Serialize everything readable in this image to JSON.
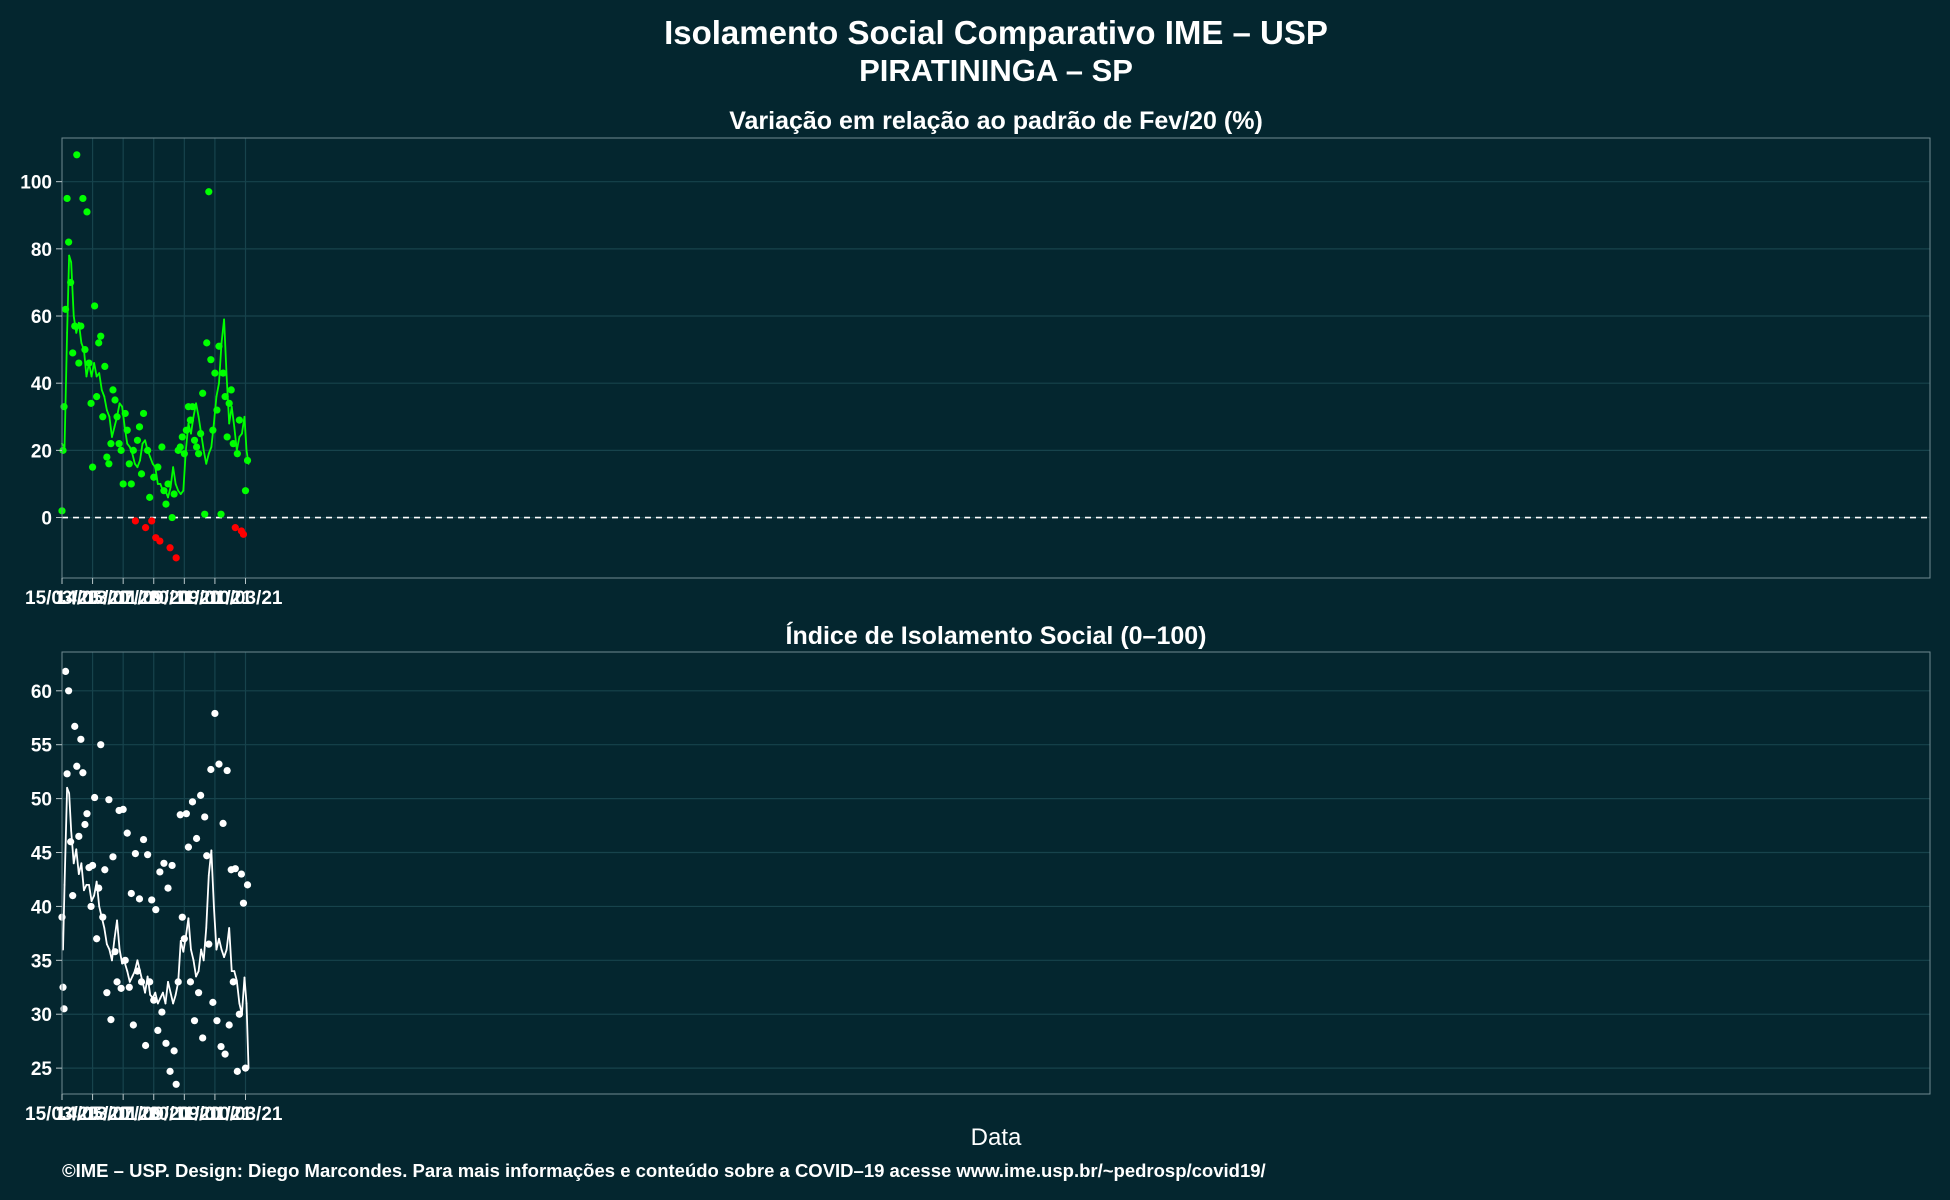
{
  "header": {
    "title_line1": "Isolamento Social Comparativo IME – USP",
    "title_line2": "PIRATININGA – SP"
  },
  "x_axis_label": "Data",
  "footer": "©IME – USP. Design: Diego Marcondes. Para mais informações e conteúdo sobre a COVID–19 acesse www.ime.usp.br/~pedrosp/covid19/",
  "colors": {
    "background": "#04262f",
    "positive": "#00ff00",
    "negative": "#ff0000",
    "index_points": "#ffffff"
  },
  "chart_data": [
    {
      "type": "scatter",
      "title": "Variação em relação ao padrão de Fev/20 (%)",
      "xlabel": "",
      "ylabel": "",
      "x_tick_labels": [
        "15/03/20",
        "14/05/20",
        "13/07/20",
        "11/09/20",
        "10/11/20",
        "09/01/21",
        "10/03/21"
      ],
      "y_tick_labels": [
        "0",
        "20",
        "40",
        "60",
        "80",
        "100"
      ],
      "ylim": [
        -18,
        113
      ],
      "reference_line_y": 0,
      "grid": true,
      "series": [
        {
          "kind": "points",
          "x": [
            "2020-03-15",
            "2020-03-17",
            "2020-03-19",
            "2020-03-22",
            "2020-03-25",
            "2020-03-28",
            "2020-04-01",
            "2020-04-05",
            "2020-04-09",
            "2020-04-13",
            "2020-04-17",
            "2020-04-21",
            "2020-04-25",
            "2020-04-29",
            "2020-05-03",
            "2020-05-07",
            "2020-05-11",
            "2020-05-14",
            "2020-05-18",
            "2020-05-22",
            "2020-05-26",
            "2020-05-30",
            "2020-06-03",
            "2020-06-07",
            "2020-06-11",
            "2020-06-15",
            "2020-06-19",
            "2020-06-23",
            "2020-06-27",
            "2020-07-01",
            "2020-07-05",
            "2020-07-09",
            "2020-07-13",
            "2020-07-17",
            "2020-07-21",
            "2020-07-25",
            "2020-07-29",
            "2020-08-02",
            "2020-08-06",
            "2020-08-10",
            "2020-08-14",
            "2020-08-18",
            "2020-08-22",
            "2020-08-26",
            "2020-08-30",
            "2020-09-03",
            "2020-09-07",
            "2020-09-11",
            "2020-09-15",
            "2020-09-19",
            "2020-09-23",
            "2020-09-27",
            "2020-10-01",
            "2020-10-05",
            "2020-10-09",
            "2020-10-13",
            "2020-10-17",
            "2020-10-21",
            "2020-10-25",
            "2020-10-29",
            "2020-11-02",
            "2020-11-06",
            "2020-11-10",
            "2020-11-14",
            "2020-11-18",
            "2020-11-22",
            "2020-11-26",
            "2020-11-30",
            "2020-12-04",
            "2020-12-08",
            "2020-12-12",
            "2020-12-16",
            "2020-12-20",
            "2020-12-24",
            "2020-12-28",
            "2021-01-01",
            "2021-01-05",
            "2021-01-09",
            "2021-01-13",
            "2021-01-17",
            "2021-01-21",
            "2021-01-25",
            "2021-01-29",
            "2021-02-02",
            "2021-02-06",
            "2021-02-10",
            "2021-02-14",
            "2021-02-18",
            "2021-02-22",
            "2021-02-26",
            "2021-03-02",
            "2021-03-06",
            "2021-03-10",
            "2021-03-14"
          ],
          "y": [
            2,
            20,
            33,
            62,
            95,
            82,
            70,
            49,
            57,
            108,
            46,
            57,
            95,
            50,
            91,
            46,
            34,
            15,
            63,
            36,
            52,
            54,
            30,
            45,
            18,
            16,
            22,
            38,
            35,
            30,
            22,
            20,
            10,
            31,
            26,
            16,
            10,
            20,
            -1,
            23,
            27,
            13,
            31,
            -3,
            20,
            6,
            -1,
            12,
            -6,
            15,
            -7,
            21,
            8,
            4,
            10,
            -9,
            0,
            7,
            -12,
            20,
            21,
            24,
            19,
            26,
            33,
            29,
            33,
            23,
            21,
            19,
            25,
            37,
            1,
            52,
            97,
            47,
            26,
            43,
            32,
            51,
            1,
            43,
            36,
            24,
            34,
            38,
            22,
            -3,
            19,
            29,
            -4,
            -5,
            8,
            17
          ],
          "color_rule": "green when value > 0, red when value < 0"
        },
        {
          "kind": "moving-average-line",
          "x": [
            "2020-03-15",
            "2020-03-20",
            "2020-03-25",
            "2020-03-29",
            "2020-04-02",
            "2020-04-07",
            "2020-04-12",
            "2020-04-17",
            "2020-04-22",
            "2020-04-27",
            "2020-05-02",
            "2020-05-07",
            "2020-05-12",
            "2020-05-17",
            "2020-05-22",
            "2020-05-27",
            "2020-06-01",
            "2020-06-06",
            "2020-06-11",
            "2020-06-16",
            "2020-06-21",
            "2020-06-26",
            "2020-07-01",
            "2020-07-06",
            "2020-07-11",
            "2020-07-16",
            "2020-07-21",
            "2020-07-26",
            "2020-07-31",
            "2020-08-05",
            "2020-08-10",
            "2020-08-15",
            "2020-08-20",
            "2020-08-25",
            "2020-08-30",
            "2020-09-04",
            "2020-09-09",
            "2020-09-14",
            "2020-09-19",
            "2020-09-24",
            "2020-09-29",
            "2020-10-04",
            "2020-10-09",
            "2020-10-14",
            "2020-10-19",
            "2020-10-24",
            "2020-10-29",
            "2020-11-03",
            "2020-11-08",
            "2020-11-13",
            "2020-11-18",
            "2020-11-23",
            "2020-11-28",
            "2020-12-03",
            "2020-12-08",
            "2020-12-13",
            "2020-12-18",
            "2020-12-23",
            "2020-12-28",
            "2021-01-02",
            "2021-01-07",
            "2021-01-12",
            "2021-01-17",
            "2021-01-22",
            "2021-01-27",
            "2021-02-01",
            "2021-02-06",
            "2021-02-11",
            "2021-02-16",
            "2021-02-21",
            "2021-02-26",
            "2021-03-03",
            "2021-03-08",
            "2021-03-12",
            "2021-03-16"
          ],
          "y": [
            22,
            21,
            55,
            78,
            76,
            60,
            55,
            58,
            52,
            50,
            42,
            46,
            42,
            46,
            42,
            43,
            38,
            36,
            32,
            30,
            24,
            27,
            30,
            34,
            33,
            27,
            22,
            21,
            19,
            16,
            15,
            17,
            22,
            23,
            20,
            18,
            16,
            15,
            10,
            10,
            8,
            8,
            6,
            9,
            15,
            10,
            8,
            7,
            8,
            20,
            28,
            25,
            30,
            34,
            30,
            25,
            20,
            16,
            19,
            21,
            28,
            36,
            40,
            52,
            59,
            42,
            28,
            33,
            27,
            20,
            24,
            25,
            30,
            20,
            16
          ]
        }
      ]
    },
    {
      "type": "scatter",
      "title": "Índice de Isolamento Social (0–100)",
      "xlabel": "Data",
      "ylabel": "",
      "x_tick_labels": [
        "15/03/20",
        "14/05/20",
        "13/07/20",
        "11/09/20",
        "10/11/20",
        "09/01/21",
        "10/03/21"
      ],
      "y_tick_labels": [
        "25",
        "30",
        "35",
        "40",
        "45",
        "50",
        "55",
        "60"
      ],
      "ylim": [
        22.6,
        63.6
      ],
      "grid": true,
      "series": [
        {
          "kind": "points",
          "x": [
            "2020-03-15",
            "2020-03-17",
            "2020-03-19",
            "2020-03-22",
            "2020-03-25",
            "2020-03-28",
            "2020-04-01",
            "2020-04-05",
            "2020-04-09",
            "2020-04-13",
            "2020-04-17",
            "2020-04-21",
            "2020-04-25",
            "2020-04-29",
            "2020-05-03",
            "2020-05-07",
            "2020-05-11",
            "2020-05-14",
            "2020-05-18",
            "2020-05-22",
            "2020-05-26",
            "2020-05-30",
            "2020-06-03",
            "2020-06-07",
            "2020-06-11",
            "2020-06-15",
            "2020-06-19",
            "2020-06-23",
            "2020-06-27",
            "2020-07-01",
            "2020-07-05",
            "2020-07-09",
            "2020-07-13",
            "2020-07-17",
            "2020-07-21",
            "2020-07-25",
            "2020-07-29",
            "2020-08-02",
            "2020-08-06",
            "2020-08-10",
            "2020-08-14",
            "2020-08-18",
            "2020-08-22",
            "2020-08-26",
            "2020-08-30",
            "2020-09-03",
            "2020-09-07",
            "2020-09-11",
            "2020-09-15",
            "2020-09-19",
            "2020-09-23",
            "2020-09-27",
            "2020-10-01",
            "2020-10-05",
            "2020-10-09",
            "2020-10-13",
            "2020-10-17",
            "2020-10-21",
            "2020-10-25",
            "2020-10-29",
            "2020-11-02",
            "2020-11-06",
            "2020-11-10",
            "2020-11-14",
            "2020-11-18",
            "2020-11-22",
            "2020-11-26",
            "2020-11-30",
            "2020-12-04",
            "2020-12-08",
            "2020-12-12",
            "2020-12-16",
            "2020-12-20",
            "2020-12-24",
            "2020-12-28",
            "2021-01-01",
            "2021-01-05",
            "2021-01-09",
            "2021-01-13",
            "2021-01-17",
            "2021-01-21",
            "2021-01-25",
            "2021-01-29",
            "2021-02-02",
            "2021-02-06",
            "2021-02-10",
            "2021-02-14",
            "2021-02-18",
            "2021-02-22",
            "2021-02-26",
            "2021-03-02",
            "2021-03-06",
            "2021-03-10",
            "2021-03-14"
          ],
          "y": [
            39,
            32.5,
            30.5,
            61.8,
            52.3,
            60,
            46,
            41,
            56.7,
            53,
            46.5,
            55.5,
            52.4,
            47.6,
            48.6,
            43.6,
            40,
            43.8,
            50.1,
            37,
            41.7,
            55,
            39,
            43.4,
            32,
            49.9,
            29.5,
            44.6,
            35.8,
            33,
            48.9,
            32.4,
            49,
            35,
            46.8,
            32.5,
            41.2,
            29,
            44.9,
            34,
            40.7,
            33,
            46.2,
            27.1,
            44.8,
            33,
            40.6,
            31.3,
            39.7,
            28.5,
            43.2,
            30.2,
            44,
            27.3,
            41.7,
            24.7,
            43.8,
            26.6,
            23.5,
            33,
            48.5,
            39,
            37,
            48.6,
            45.5,
            33,
            49.7,
            29.4,
            46.3,
            32,
            50.3,
            27.8,
            48.3,
            44.7,
            36.5,
            52.7,
            31.1,
            57.9,
            29.4,
            53.2,
            27,
            47.7,
            26.3,
            52.6,
            29,
            43.4,
            33,
            43.5,
            24.7,
            30,
            43,
            40.3,
            25,
            42
          ]
        },
        {
          "kind": "moving-average-line",
          "x": [
            "2020-03-17",
            "2020-03-20",
            "2020-03-25",
            "2020-03-29",
            "2020-04-02",
            "2020-04-07",
            "2020-04-12",
            "2020-04-17",
            "2020-04-22",
            "2020-04-27",
            "2020-05-02",
            "2020-05-07",
            "2020-05-12",
            "2020-05-17",
            "2020-05-22",
            "2020-05-27",
            "2020-06-01",
            "2020-06-06",
            "2020-06-11",
            "2020-06-16",
            "2020-06-21",
            "2020-06-26",
            "2020-07-01",
            "2020-07-06",
            "2020-07-11",
            "2020-07-16",
            "2020-07-21",
            "2020-07-26",
            "2020-07-31",
            "2020-08-05",
            "2020-08-10",
            "2020-08-15",
            "2020-08-20",
            "2020-08-25",
            "2020-08-30",
            "2020-09-04",
            "2020-09-09",
            "2020-09-14",
            "2020-09-19",
            "2020-09-24",
            "2020-09-29",
            "2020-10-04",
            "2020-10-09",
            "2020-10-14",
            "2020-10-19",
            "2020-10-24",
            "2020-10-29",
            "2020-11-03",
            "2020-11-08",
            "2020-11-13",
            "2020-11-18",
            "2020-11-23",
            "2020-11-28",
            "2020-12-03",
            "2020-12-08",
            "2020-12-13",
            "2020-12-18",
            "2020-12-23",
            "2020-12-28",
            "2021-01-02",
            "2021-01-07",
            "2021-01-12",
            "2021-01-17",
            "2021-01-22",
            "2021-01-27",
            "2021-02-01",
            "2021-02-06",
            "2021-02-11",
            "2021-02-16",
            "2021-02-21",
            "2021-02-26",
            "2021-03-03",
            "2021-03-08",
            "2021-03-12",
            "2021-03-16"
          ],
          "y": [
            36,
            42,
            51,
            50.5,
            47,
            44,
            45.3,
            43,
            44,
            41.5,
            42,
            42,
            40.5,
            41,
            42.3,
            40,
            39,
            38,
            36.5,
            36,
            35,
            37,
            38.7,
            36,
            34.7,
            34.8,
            34,
            33,
            33.5,
            34,
            35,
            34,
            33,
            32,
            33.5,
            31.8,
            31.5,
            32,
            31,
            31.5,
            32,
            31,
            33,
            32,
            31,
            31.8,
            33,
            36.8,
            35.8,
            37.2,
            38.9,
            36,
            35,
            33.5,
            34,
            36,
            35,
            38,
            42.9,
            45.2,
            40,
            36,
            37,
            36,
            35.3,
            36,
            38,
            34,
            34,
            33.1,
            31,
            30,
            33.4,
            31,
            25
          ]
        }
      ]
    }
  ]
}
